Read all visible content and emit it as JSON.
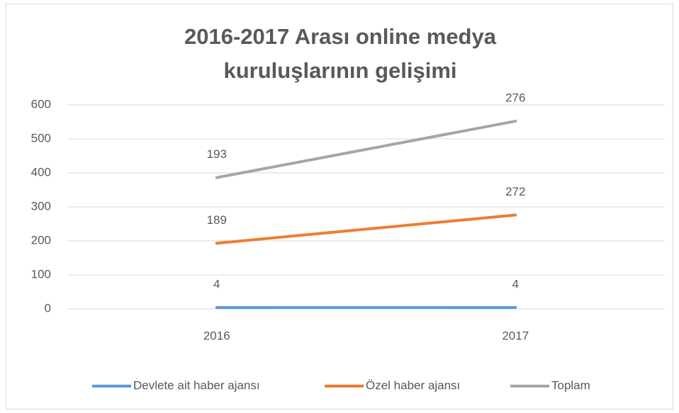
{
  "chart_data": {
    "type": "line",
    "stacked": true,
    "title": "2016-2017 Arası online medya kuruluşlarının gelişimi",
    "categories": [
      "2016",
      "2017"
    ],
    "series": [
      {
        "name": "Devlete ait haber ajansı",
        "color": "#5b9bd5",
        "values": [
          4,
          4
        ]
      },
      {
        "name": "Özel haber ajansı",
        "color": "#ed7d31",
        "values": [
          189,
          272
        ]
      },
      {
        "name": "Toplam",
        "color": "#a5a5a5",
        "values": [
          193,
          276
        ]
      }
    ],
    "ylim": [
      0,
      600
    ],
    "yticks": [
      0,
      100,
      200,
      300,
      400,
      500,
      600
    ],
    "grid": true,
    "legend": "bottom"
  }
}
